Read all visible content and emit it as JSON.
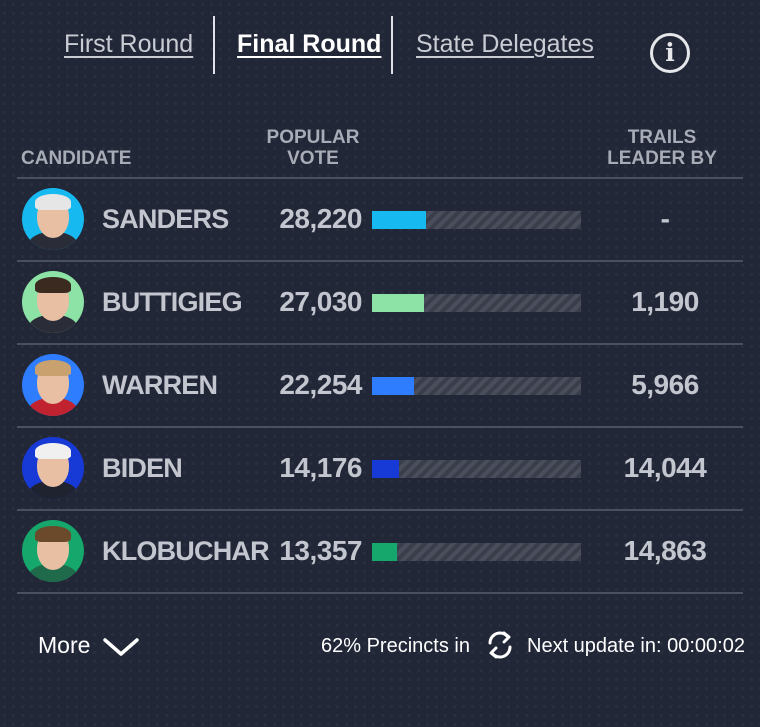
{
  "tabs": [
    {
      "label": "First Round"
    },
    {
      "label": "Final Round"
    },
    {
      "label": "State Delegates"
    }
  ],
  "header": {
    "candidate": "CANDIDATE",
    "popular_vote_line1": "POPULAR",
    "popular_vote_line2": "VOTE",
    "trails_line1": "TRAILS",
    "trails_line2": "LEADER BY"
  },
  "candidates": [
    {
      "name": "SANDERS",
      "votes": "28,220",
      "vote_share": 0.26,
      "trails": "-",
      "color": "#16b9f0",
      "ring": "#16b9f0",
      "hair": "#e6e6e6",
      "suit": "#2a2d38"
    },
    {
      "name": "BUTTIGIEG",
      "votes": "27,030",
      "vote_share": 0.25,
      "trails": "1,190",
      "color": "#8de2a6",
      "ring": "#8de2a6",
      "hair": "#3a2a20",
      "suit": "#2a2d38"
    },
    {
      "name": "WARREN",
      "votes": "22,254",
      "vote_share": 0.2,
      "trails": "5,966",
      "color": "#2f7dff",
      "ring": "#2f7dff",
      "hair": "#c9a16e",
      "suit": "#c0232f"
    },
    {
      "name": "BIDEN",
      "votes": "14,176",
      "vote_share": 0.13,
      "trails": "14,044",
      "color": "#1739d6",
      "ring": "#1739d6",
      "hair": "#f0f0f0",
      "suit": "#1f2330"
    },
    {
      "name": "KLOBUCHAR",
      "votes": "13,357",
      "vote_share": 0.12,
      "trails": "14,863",
      "color": "#15a76b",
      "ring": "#15a76b",
      "hair": "#6b4a2c",
      "suit": "#1f6a4a"
    }
  ],
  "footer": {
    "more_label": "More",
    "precincts": "62% Precincts in",
    "next_update": "Next update in: 00:00:02"
  }
}
